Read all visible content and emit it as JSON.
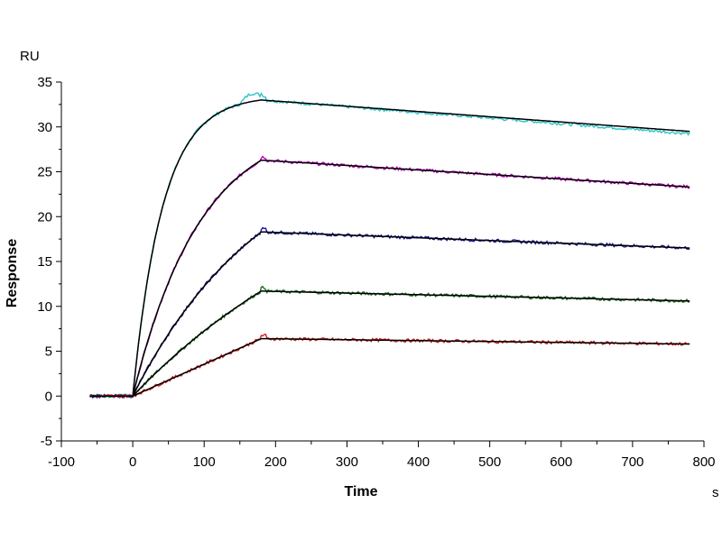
{
  "chart_data": {
    "type": "line",
    "xlabel": "Time",
    "ylabel": "Response",
    "x_unit": "s",
    "y_unit": "RU",
    "xlim": [
      -100,
      800
    ],
    "ylim": [
      -5,
      35
    ],
    "x_ticks": [
      -100,
      0,
      100,
      200,
      300,
      400,
      500,
      600,
      700,
      800
    ],
    "y_ticks": [
      -5,
      0,
      5,
      10,
      15,
      20,
      25,
      30,
      35
    ],
    "grid": false,
    "legend": "none",
    "baseline_start": -60,
    "injection_start": 0,
    "injection_end": 180,
    "run_end": 780,
    "series": [
      {
        "color": "#2ec4c8",
        "fit_color": "#000000",
        "kind": "fast",
        "association_tau": 42,
        "plateau": 33.0,
        "end_value": 29.5
      },
      {
        "color": "#c000c0",
        "fit_color": "#000000",
        "kind": "exp",
        "association_tau": 95,
        "plateau": 26.3,
        "end_value": 23.3
      },
      {
        "color": "#1a1aa0",
        "fit_color": "#000000",
        "kind": "exp",
        "association_tau": 190,
        "plateau": 18.3,
        "end_value": 16.5
      },
      {
        "color": "#207020",
        "fit_color": "#000000",
        "kind": "exp",
        "association_tau": 340,
        "plateau": 11.7,
        "end_value": 10.6
      },
      {
        "color": "#d02020",
        "fit_color": "#000000",
        "kind": "lin",
        "association_tau": 0,
        "plateau": 6.4,
        "end_value": 5.8
      }
    ]
  }
}
